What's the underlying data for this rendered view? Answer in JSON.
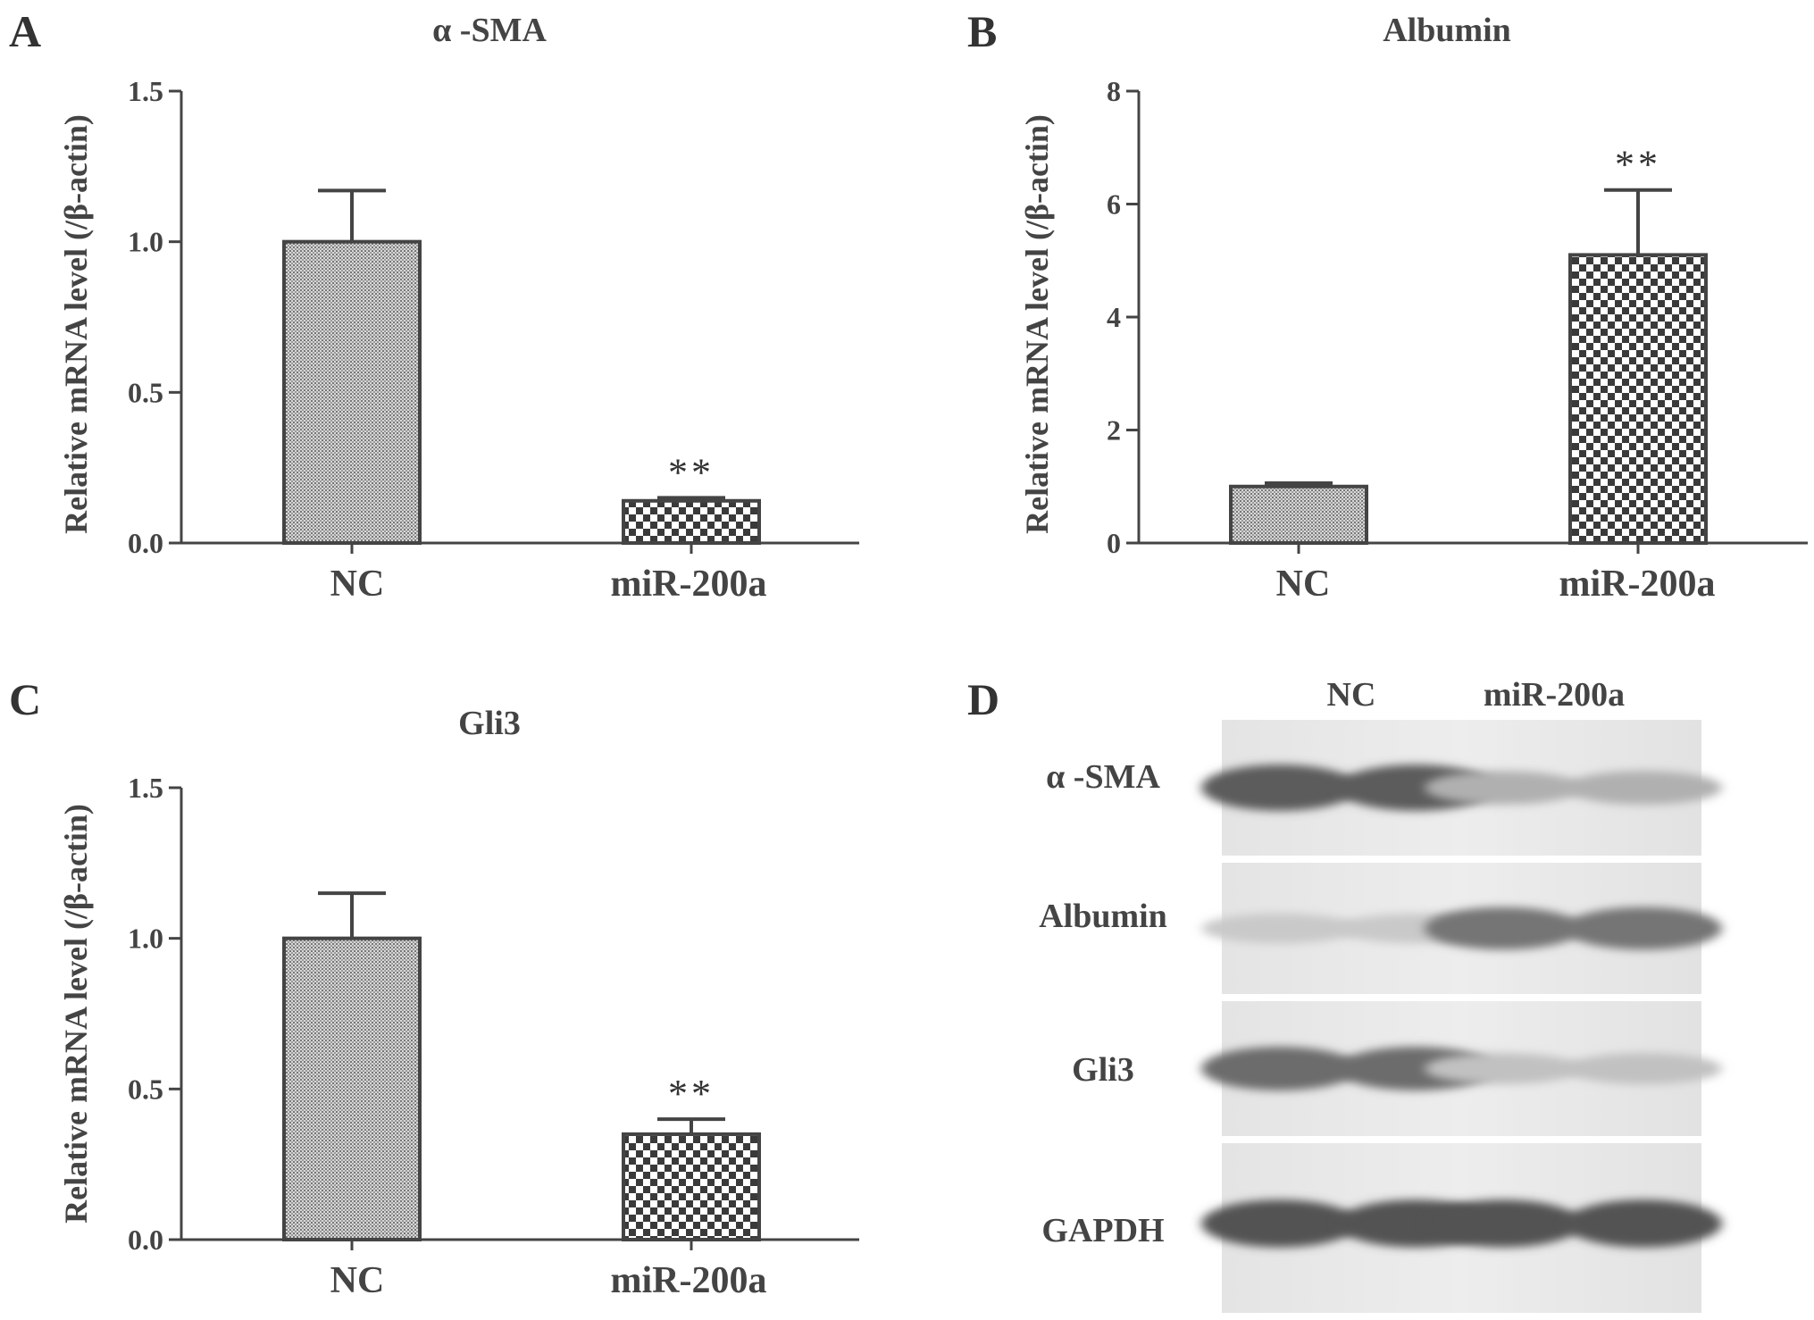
{
  "figure": {
    "panels": {
      "A": {
        "letter": "A"
      },
      "B": {
        "letter": "B"
      },
      "C": {
        "letter": "C"
      },
      "D": {
        "letter": "D"
      }
    }
  },
  "chart_data": [
    {
      "panel": "A",
      "type": "bar",
      "title": "α -SMA",
      "ylabel": "Relative mRNA level (/β-actin)",
      "xlabel": "",
      "categories": [
        "NC",
        "miR-200a"
      ],
      "values": [
        1.0,
        0.14
      ],
      "errors": [
        0.17,
        0.01
      ],
      "significance": [
        "",
        "**"
      ],
      "ylim": [
        0,
        1.5
      ],
      "yticks": [
        0,
        0.5,
        1.0,
        1.5
      ],
      "ytick_labels": [
        "0.0",
        "0.5",
        "1.0",
        "1.5"
      ],
      "fill_patterns": [
        "fine-hatch",
        "checkerboard"
      ],
      "grid": false
    },
    {
      "panel": "B",
      "type": "bar",
      "title": "Albumin",
      "ylabel": "Relative mRNA level (/β-actin)",
      "xlabel": "",
      "categories": [
        "NC",
        "miR-200a"
      ],
      "values": [
        1.0,
        5.1
      ],
      "errors": [
        0.06,
        1.15
      ],
      "significance": [
        "",
        "**"
      ],
      "ylim": [
        0,
        8
      ],
      "yticks": [
        0,
        2,
        4,
        6,
        8
      ],
      "ytick_labels": [
        "0",
        "2",
        "4",
        "6",
        "8"
      ],
      "fill_patterns": [
        "fine-hatch",
        "checkerboard"
      ],
      "grid": false
    },
    {
      "panel": "C",
      "type": "bar",
      "title": "Gli3",
      "ylabel": "Relative mRNA level (/β-actin)",
      "xlabel": "",
      "categories": [
        "NC",
        "miR-200a"
      ],
      "values": [
        1.0,
        0.35
      ],
      "errors": [
        0.15,
        0.05
      ],
      "significance": [
        "",
        "**"
      ],
      "ylim": [
        0,
        1.5
      ],
      "yticks": [
        0,
        0.5,
        1.0,
        1.5
      ],
      "ytick_labels": [
        "0.0",
        "0.5",
        "1.0",
        "1.5"
      ],
      "fill_patterns": [
        "fine-hatch",
        "checkerboard"
      ],
      "grid": false
    }
  ],
  "western_blot": {
    "panel": "D",
    "lanes": [
      "NC",
      "miR-200a"
    ],
    "rows": [
      {
        "label": "α -SMA",
        "intensity": [
          0.85,
          0.35
        ]
      },
      {
        "label": "Albumin",
        "intensity": [
          0.2,
          0.7
        ]
      },
      {
        "label": "Gli3",
        "intensity": [
          0.75,
          0.25
        ]
      },
      {
        "label": "GAPDH",
        "intensity": [
          0.9,
          0.9
        ]
      }
    ]
  }
}
